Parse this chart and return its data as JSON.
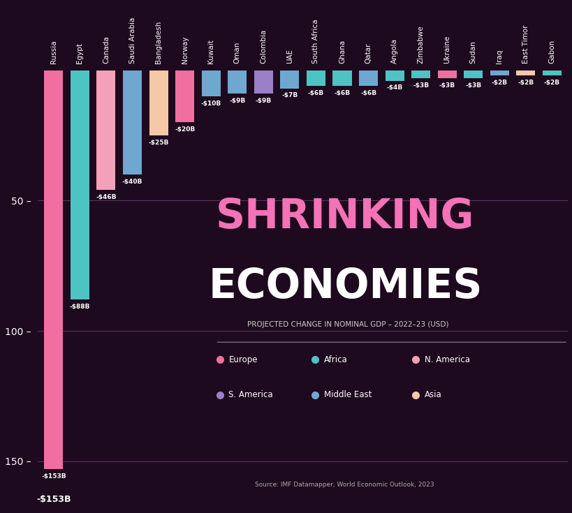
{
  "countries": [
    "Russia",
    "Egypt",
    "Canada",
    "Saudi Arabia",
    "Bangladesh",
    "Norway",
    "Kuwait",
    "Oman",
    "Colombia",
    "UAE",
    "South Africa",
    "Ghana",
    "Qatar",
    "Angola",
    "Zimbabwe",
    "Ukraine",
    "Sudan",
    "Iraq",
    "East Timor",
    "Gabon"
  ],
  "values": [
    -153,
    -88,
    -46,
    -40,
    -25,
    -20,
    -10,
    -9,
    -9,
    -7,
    -6,
    -6,
    -6,
    -4,
    -3,
    -3,
    -3,
    -2,
    -2,
    -2
  ],
  "regions": [
    "Europe",
    "Africa",
    "N. America",
    "Middle East",
    "Asia",
    "Europe",
    "Middle East",
    "Middle East",
    "S. America",
    "Middle East",
    "Africa",
    "Africa",
    "Middle East",
    "Africa",
    "Africa",
    "Europe",
    "Africa",
    "Middle East",
    "Asia",
    "Africa"
  ],
  "region_colors": {
    "Europe": "#F06FA0",
    "Africa": "#4DC4C4",
    "N. America": "#F4A0B8",
    "S. America": "#9B7FC7",
    "Middle East": "#6EA8D0",
    "Asia": "#F5C8A8"
  },
  "bar_labels": [
    "-$153B",
    "-$88B",
    "-$46B",
    "-$40B",
    "-$25B",
    "-$20B",
    "-$10B",
    "-$9B",
    "-$9B",
    "-$7B",
    "-$6B",
    "-$6B",
    "-$6B",
    "-$4B",
    "-$3B",
    "-$3B",
    "-$3B",
    "-$2B",
    "-$2B",
    "-$2B"
  ],
  "background_color": "#1E0A1E",
  "text_color": "#FFFFFF",
  "title_line1": "SHRINKING",
  "title_line2": "ECONOMIES",
  "subtitle": "PROJECTED CHANGE IN NOMINAL GDP – 2022–23 (USD)",
  "source": "Source: IMF Datamapper, World Economic Outlook, 2023",
  "yticks": [
    0,
    -50,
    -100,
    -150
  ],
  "ytick_labels": [
    "",
    "50 –",
    "100 –",
    "150 –"
  ],
  "legend_items": [
    {
      "label": "Europe",
      "color": "#F06FA0"
    },
    {
      "label": "S. America",
      "color": "#9B7FC7"
    },
    {
      "label": "Africa",
      "color": "#4DC4C4"
    },
    {
      "label": "Middle East",
      "color": "#6EA8D0"
    },
    {
      "label": "N. America",
      "color": "#F4A0B8"
    },
    {
      "label": "Asia",
      "color": "#F5C8A8"
    }
  ]
}
